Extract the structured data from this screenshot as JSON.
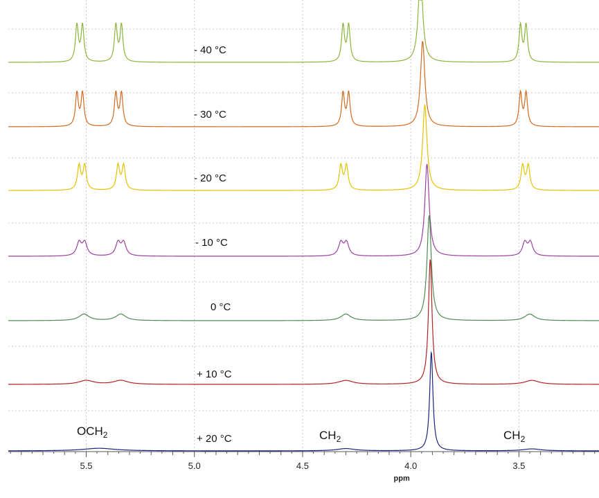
{
  "chart_data": {
    "type": "line",
    "title": "",
    "xlabel": "ppm",
    "ylabel": "",
    "x_reversed": true,
    "xlim": [
      5.86,
      3.13
    ],
    "x_ticks": [
      "5.5",
      "5.0",
      "4.5",
      "4.0",
      "3.5"
    ],
    "x_tick_values": [
      5.5,
      5.0,
      4.5,
      4.0,
      3.5
    ],
    "grid": true,
    "legend": "none",
    "peak_labels": [
      {
        "text": "OCH2",
        "sub": "2",
        "ppm": 5.42
      },
      {
        "text": "CH2",
        "sub": "2",
        "ppm": 4.3
      },
      {
        "text": "CH2",
        "sub": "2",
        "ppm": 3.46
      }
    ],
    "series": [
      {
        "name": "- 40 °C",
        "color": "#8cb43a",
        "peaks": [
          [
            5.53,
            5.5,
            0.008
          ],
          [
            5.35,
            5.5,
            0.008
          ],
          [
            4.3,
            5.5,
            0.008
          ],
          [
            3.48,
            5.5,
            0.008
          ]
        ],
        "spike": [
          3.955,
          14,
          0.012
        ]
      },
      {
        "name": "- 30 °C",
        "color": "#d2691e",
        "peaks": [
          [
            5.53,
            5.0,
            0.008
          ],
          [
            5.35,
            5.0,
            0.008
          ],
          [
            4.3,
            5.0,
            0.008
          ],
          [
            3.48,
            5.0,
            0.008
          ]
        ],
        "spike": [
          3.945,
          13,
          0.012
        ]
      },
      {
        "name": "- 20 °C",
        "color": "#e6c200",
        "peaks": [
          [
            5.52,
            3.7,
            0.009
          ],
          [
            5.34,
            3.7,
            0.009
          ],
          [
            4.31,
            3.7,
            0.009
          ],
          [
            3.47,
            3.7,
            0.009
          ]
        ],
        "spike": [
          3.935,
          13,
          0.012
        ]
      },
      {
        "name": "- 10 °C",
        "color": "#9b3fa0",
        "peaks": [
          [
            5.52,
            2.0,
            0.013
          ],
          [
            5.34,
            2.0,
            0.013
          ],
          [
            4.31,
            2.0,
            0.013
          ],
          [
            3.46,
            2.0,
            0.013
          ]
        ],
        "spike": [
          3.925,
          14,
          0.012
        ]
      },
      {
        "name": "0 °C",
        "color": "#4e8a52",
        "peaks": [
          [
            5.51,
            1.0,
            0.028
          ],
          [
            5.34,
            1.0,
            0.028
          ],
          [
            4.3,
            1.0,
            0.028
          ],
          [
            3.45,
            1.0,
            0.028
          ]
        ],
        "spike": [
          3.915,
          16,
          0.012
        ]
      },
      {
        "name": "+ 10 °C",
        "color": "#b22222",
        "peaks": [
          [
            5.5,
            0.6,
            0.04
          ],
          [
            5.34,
            0.6,
            0.04
          ],
          [
            4.3,
            0.6,
            0.04
          ],
          [
            3.44,
            0.6,
            0.04
          ]
        ],
        "spike": [
          3.91,
          19,
          0.01
        ]
      },
      {
        "name": "+ 20 °C",
        "color": "#1a237e",
        "peaks": [
          [
            5.44,
            0.4,
            0.09
          ],
          [
            4.3,
            0.35,
            0.05
          ],
          [
            3.44,
            0.3,
            0.05
          ]
        ],
        "spike": [
          3.905,
          15,
          0.009
        ]
      }
    ]
  }
}
